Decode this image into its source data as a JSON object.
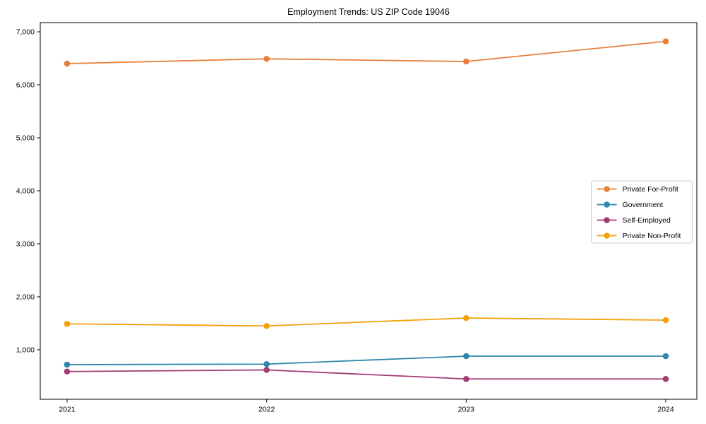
{
  "title": "Employment Trends: US ZIP Code 19046",
  "chart_data": {
    "type": "line",
    "title": "Employment Trends: US ZIP Code 19046",
    "xlabel": "",
    "ylabel": "",
    "x": [
      "2021",
      "2022",
      "2023",
      "2024"
    ],
    "series": [
      {
        "name": "Private For-Profit",
        "color": "#e8803c",
        "values": [
          6400,
          6490,
          6440,
          6820
        ]
      },
      {
        "name": "Government",
        "color": "#2e86ab",
        "values": [
          720,
          730,
          880,
          880
        ]
      },
      {
        "name": "Self-Employed",
        "color": "#a23b72",
        "values": [
          590,
          620,
          450,
          450
        ]
      },
      {
        "name": "Private Non-Profit",
        "color": "#f4a00c",
        "values": [
          1490,
          1450,
          1600,
          1560
        ]
      }
    ],
    "yticks": [
      1000,
      2000,
      3000,
      4000,
      5000,
      6000,
      7000
    ],
    "ytick_labels": [
      "1,000",
      "2,000",
      "3,000",
      "4,000",
      "5,000",
      "6,000",
      "7,000"
    ],
    "ylim": [
      60,
      7160
    ],
    "grid": false,
    "marker": "o",
    "legend_position": "center right",
    "colors": {
      "axis": "#000000",
      "tick_text": "#000000",
      "legend_border": "#cccccc",
      "legend_bg": "#ffffff"
    }
  }
}
